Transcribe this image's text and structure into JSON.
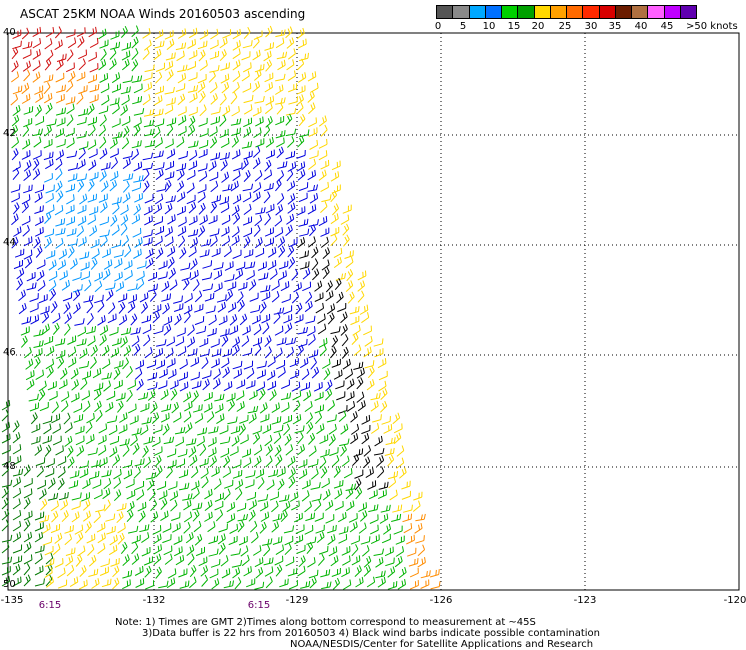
{
  "title": "ASCAT 25KM NOAA Winds 20160503 ascending",
  "colorbar": {
    "labels": [
      "0",
      "5",
      "10",
      "15",
      "20",
      "25",
      "30",
      "35",
      "40",
      "45",
      ">50 knots"
    ],
    "colors": [
      "#555555",
      "#8a8a8a",
      "#00a8ff",
      "#0070ff",
      "#00d000",
      "#00a000",
      "#ffd800",
      "#ffa000",
      "#ff6a00",
      "#ff2a00",
      "#d80000",
      "#6b1c00",
      "#b07040",
      "#ff60ff",
      "#c000ff",
      "#6000b0"
    ]
  },
  "latitude_labels": [
    "40",
    "42",
    "44",
    "46",
    "48",
    "50"
  ],
  "longitude_labels": [
    "-135",
    "-132",
    "-129",
    "-126",
    "-123",
    "-120"
  ],
  "time_labels": [
    "6:15",
    "6:15"
  ],
  "notes": {
    "line1": "Note: 1) Times are GMT 2)Times along bottom correspond to measurement at ~45S",
    "line2": "3)Data buffer is 22 hrs from 20160503 4) Black wind barbs indicate possible contamination",
    "line3": "NOAA/NESDIS/Center for Satellite Applications and Research"
  },
  "legend_colors": {
    "black": "#000000",
    "blue": "#0000e0",
    "lightblue": "#0096ff",
    "green": "#00b400",
    "darkgreen": "#007800",
    "yellow": "#ffd700",
    "orange": "#ff8c00",
    "red": "#d01010"
  }
}
